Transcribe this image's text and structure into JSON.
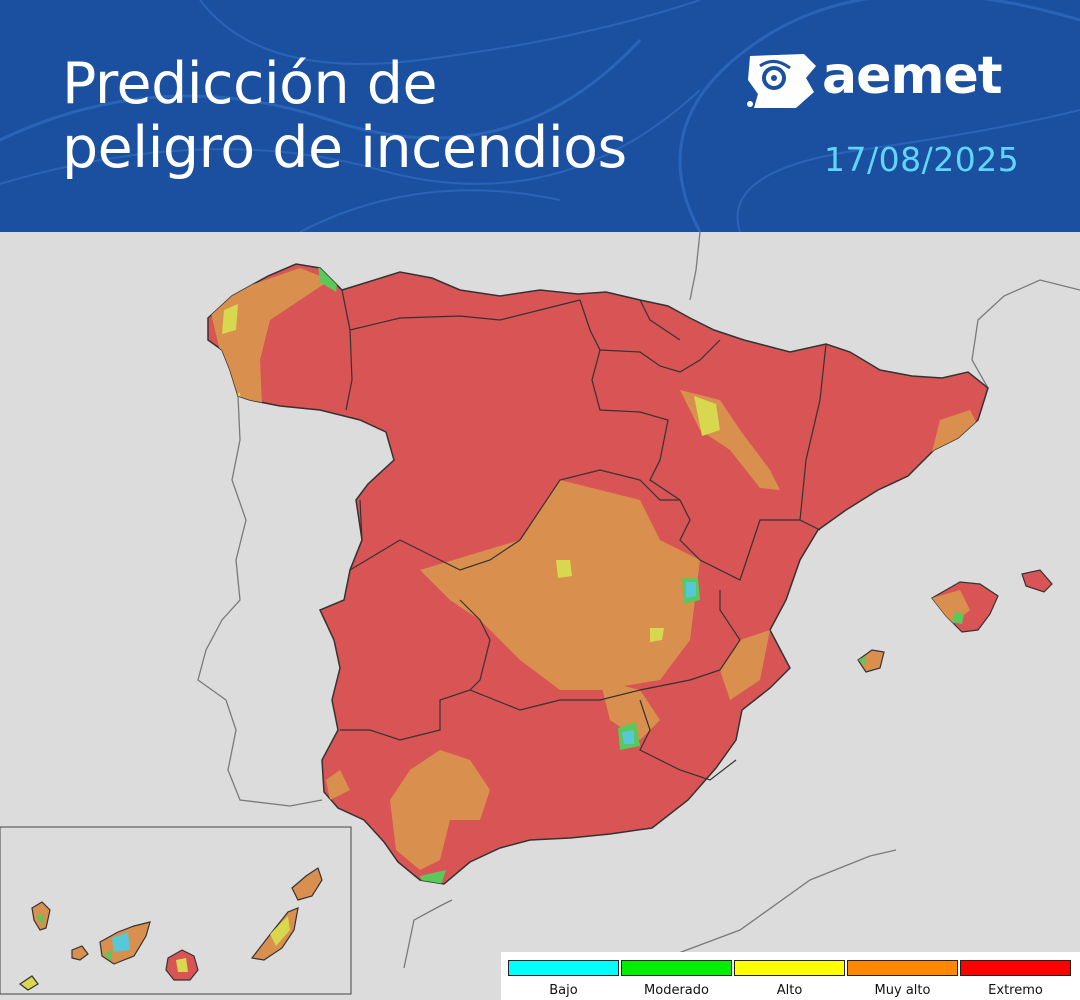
{
  "header": {
    "title_line1": "Predicción de",
    "title_line2": "peligro de incendios",
    "brand": "aemet",
    "date": "17/08/2025"
  },
  "map": {
    "danger_colors": {
      "extremo": "#d95454",
      "muy_alto": "#d9904e",
      "alto": "#d8d84e",
      "moderado": "#5ac85a",
      "bajo": "#56c8d8"
    }
  },
  "legend": {
    "items": [
      {
        "label": "Bajo",
        "color": "#00ffff"
      },
      {
        "label": "Moderado",
        "color": "#00ee00"
      },
      {
        "label": "Alto",
        "color": "#ffff00"
      },
      {
        "label": "Muy alto",
        "color": "#ff8800"
      },
      {
        "label": "Extremo",
        "color": "#ff0000"
      }
    ]
  }
}
